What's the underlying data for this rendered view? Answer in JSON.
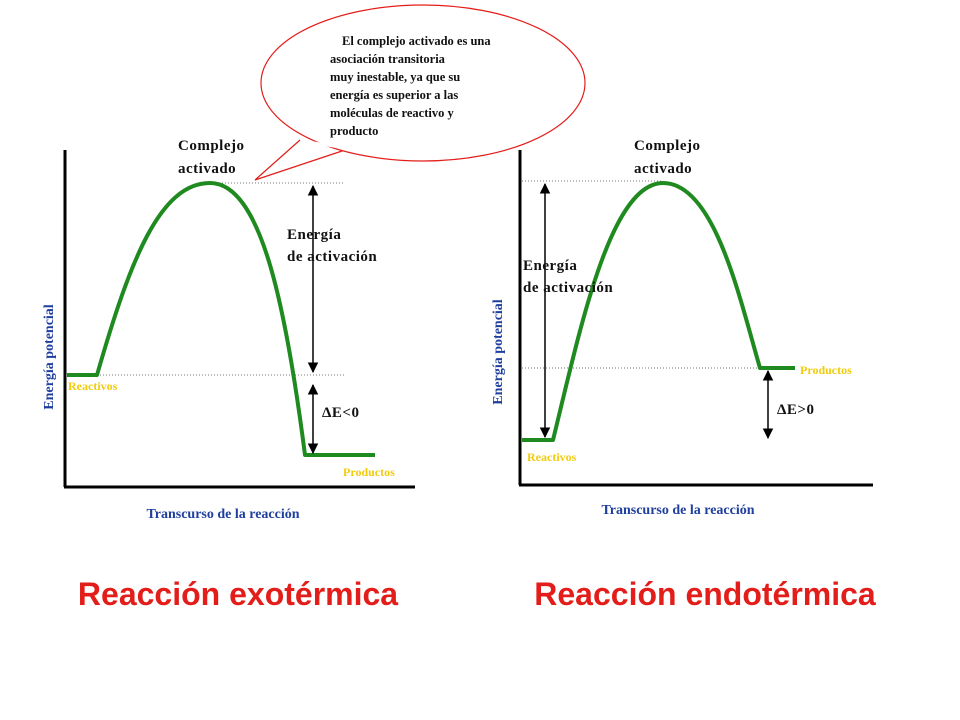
{
  "bubble": {
    "lines": [
      "El complejo activado es una",
      "asociación transitoria",
      "muy inestable, ya que su",
      "energía es superior a las",
      "moléculas de reactivo y",
      "producto"
    ]
  },
  "exothermic": {
    "complex_label": [
      "Complejo",
      "activado"
    ],
    "activation_label": [
      "Energía",
      "de activación"
    ],
    "delta_label": "ΔE<0",
    "reactants": "Reactivos",
    "products": "Productos",
    "y_axis_title": "Energía potencial",
    "x_axis_title": "Transcurso de la reacción",
    "title": "Reacción exotérmica"
  },
  "endothermic": {
    "complex_label": [
      "Complejo",
      "activado"
    ],
    "activation_label": [
      "Energía",
      "de activación"
    ],
    "delta_label": "ΔE>0",
    "reactants": "Reactivos",
    "products": "Productos",
    "y_axis_title": "Energía potencial",
    "x_axis_title": "Transcurso de la reacción",
    "title": "Reacción endotérmica"
  }
}
